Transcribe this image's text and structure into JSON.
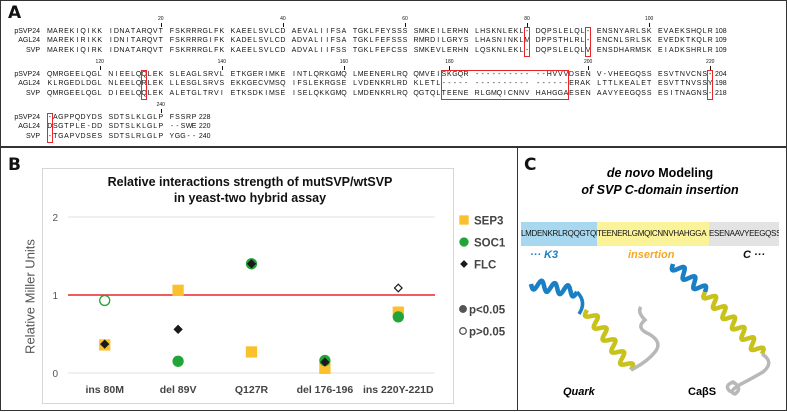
{
  "panel_a": {
    "label": "A",
    "blocks": [
      {
        "ticks": [
          {
            "label": "20",
            "col": 20
          },
          {
            "label": "40",
            "col": 40
          },
          {
            "label": "60",
            "col": 60
          },
          {
            "label": "80",
            "col": 80
          },
          {
            "label": "100",
            "col": 100
          }
        ],
        "rows": [
          {
            "name": "pSVP24",
            "seq": "MAREKIQIKK IDNATARQVT FSKRRRGLFK KAEELSVLCD AEVALIIFSA TGKLFEYSSS SMKEILERHN LHSKNLEKL- DQPSLELQL- ENSNYARLSK EVAEKSHQLR",
            "end": "108"
          },
          {
            "name": "AGL24",
            "seq": "MAREKIRIKK IDNITARQVT FSKRRRGIFK KADELSVLCD ADVALIIFSA TGKLFEFSSS RMRDILGRYS LHASNINKLM DPPSTHLRL- ENCNLSRLSK EVEDKTKQLR",
            "end": "109"
          },
          {
            "name": "SVP",
            "seq": "MAREKIQIRK IDNATARQVT FSKRRRGLFK KAEELSVLCD ADVALIIFSS TGKLFEFCSS SMKEVLERHN LQSKNLEKL- DQPSLELQLV ENSDHARMSK EIADKSHRLR",
            "end": "109"
          }
        ],
        "highlights": [
          [
            80,
            80
          ],
          [
            90,
            90
          ]
        ]
      },
      {
        "ticks": [
          {
            "label": "120",
            "col": 10
          },
          {
            "label": "140",
            "col": 30
          },
          {
            "label": "160",
            "col": 50
          },
          {
            "label": "180",
            "col": 67
          },
          {
            "label": "200",
            "col": 90
          },
          {
            "label": "220",
            "col": 110
          }
        ],
        "rows": [
          {
            "name": "pSVP24",
            "seq": "QMRGEELQGL NIEELQQLEK SLEAGLSRVL ETKGERIMKE INTLQRKGMQ LMEENERLRQ QMVEISKGQR ---------- --HVVVDSEN V-VHEEGQSS ESVTNVCNS-",
            "end": "204"
          },
          {
            "name": "AGL24",
            "seq": "KLRGEDLDGL NLEELQRLEK LLESGLSRVS EKKGECVMSQ IFSLEKRGSE LVDENKRLRD KLETL----- ---------- ------ERAK LTTLKEALET ESVTTNVSSY",
            "end": "198"
          },
          {
            "name": "SVP",
            "seq": "QMRGEELQGL DIEELQQLEK ALETGLTRVI ETKSDKIMSE ISELQKKGMQ LMDENKRLRQ QGTQLTEENE RLGMQICNNV HAHGGAESEN AAVYEEGQSS ESITNAGNS-",
            "end": "218"
          }
        ],
        "highlights": [
          [
            17,
            17
          ],
          [
            66,
            86
          ],
          [
            110,
            110
          ]
        ]
      },
      {
        "ticks": [
          {
            "label": "240",
            "col": 20
          }
        ],
        "rows": [
          {
            "name": "pSVP24",
            "seq": "-AGPPQDYDS SDTSLKLGLP FSSRP",
            "end": "228"
          },
          {
            "name": "AGL24",
            "seq": "DSGTPLE-DD SDTSLKLGLP --SWE",
            "end": "220"
          },
          {
            "name": "SVP",
            "seq": "-TGAPVDSES SDTSLRLGLP YGG--",
            "end": "240"
          }
        ],
        "highlights": [
          [
            1,
            1
          ]
        ]
      }
    ]
  },
  "panel_b": {
    "label": "B"
  },
  "chart_data": {
    "type": "scatter",
    "title": "Relative interactions strength of mutSVP/wtSVP",
    "subtitle": "in yeast-two hybrid assay",
    "xlabel": "",
    "ylabel": "Relative Miller Units",
    "ylim": [
      0,
      2
    ],
    "yticks": [
      "0",
      "1",
      "2"
    ],
    "grid": true,
    "reference_line": {
      "y": 1,
      "color": "#e8262a"
    },
    "categories": [
      "ins 80M",
      "del 89V",
      "Q127R",
      "del 176-196",
      "ins 220Y-221D"
    ],
    "series": [
      {
        "name": "SEP3",
        "marker": "square",
        "color": "#fbc02d",
        "values": [
          0.36,
          1.06,
          0.27,
          0.06,
          0.78
        ],
        "significant": [
          true,
          true,
          true,
          true,
          true
        ]
      },
      {
        "name": "SOC1",
        "marker": "circle",
        "color": "#22a538",
        "values": [
          0.93,
          0.15,
          1.4,
          0.16,
          0.72
        ],
        "significant": [
          false,
          true,
          true,
          true,
          true
        ]
      },
      {
        "name": "FLC",
        "marker": "diamond",
        "color": "#1a1a1a",
        "values": [
          0.37,
          0.56,
          1.4,
          0.14,
          1.09
        ],
        "significant": [
          true,
          true,
          true,
          true,
          false
        ]
      }
    ],
    "legend_position": "right",
    "significance_legend": [
      "p<0.05",
      "p>0.05"
    ]
  },
  "panel_c": {
    "label": "C",
    "title_italic": "de novo",
    "title_rest": " Modeling",
    "title_line2": "of SVP C-domain insertion",
    "segments": [
      {
        "text": "LMDENKRLRQQGTQL",
        "color": "#a8d8ef",
        "label": "··· K3",
        "label_color": "#1b7fc4"
      },
      {
        "text": "TEENERLGMQICNNVHAHGGA",
        "color": "#fbf39a",
        "label": "insertion",
        "label_color": "#f5a623"
      },
      {
        "text": "ESENAAVYEEGQSS",
        "color": "#e3e3e3",
        "label": "C ···",
        "label_color": "#111111"
      }
    ],
    "models": [
      "Quark",
      "CaβS"
    ],
    "colors": {
      "k3": "#1b7fc4",
      "insertion": "#c8c21a",
      "c_domain": "#b8b8b8"
    }
  }
}
